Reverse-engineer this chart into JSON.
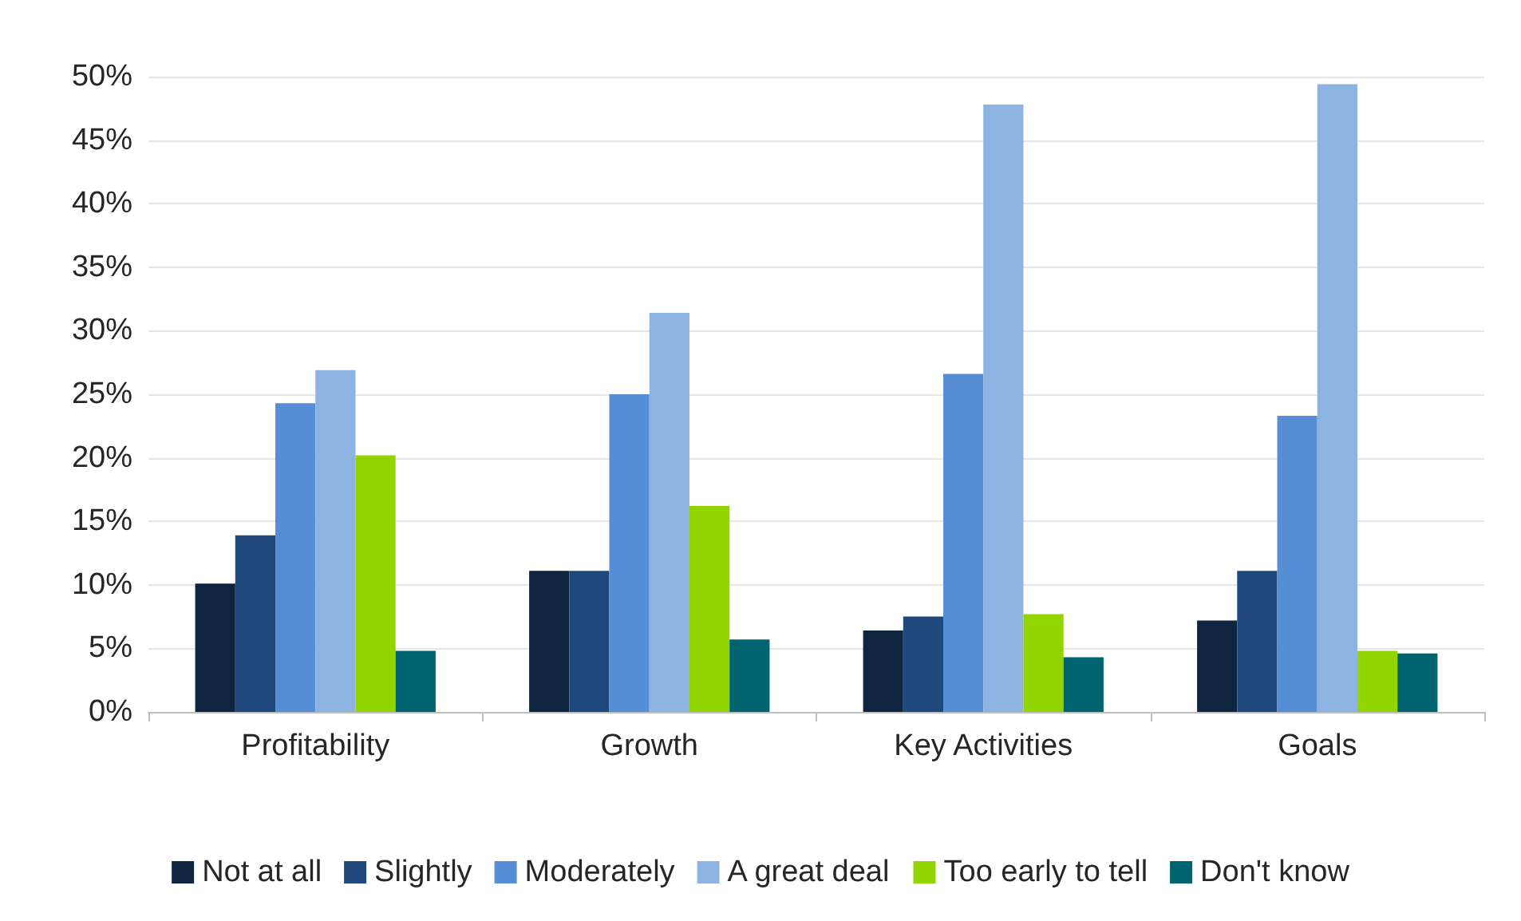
{
  "chart_data": {
    "type": "bar",
    "categories": [
      "Profitability",
      "Growth",
      "Key Activities",
      "Goals"
    ],
    "series": [
      {
        "name": "Not at all",
        "color": "#0f243e",
        "values": [
          10.1,
          11.1,
          6.4,
          7.2
        ]
      },
      {
        "name": "Slightly",
        "color": "#1f497d",
        "values": [
          13.9,
          11.1,
          7.5,
          11.1
        ]
      },
      {
        "name": "Moderately",
        "color": "#558ed5",
        "values": [
          24.3,
          25.0,
          26.6,
          23.3
        ]
      },
      {
        "name": "A great deal",
        "color": "#8db3e2",
        "values": [
          26.9,
          31.4,
          47.8,
          49.4
        ]
      },
      {
        "name": "Too early to tell",
        "color": "#92d400",
        "values": [
          20.2,
          16.2,
          7.7,
          4.8
        ]
      },
      {
        "name": "Don't know",
        "color": "#006470",
        "values": [
          4.8,
          5.7,
          4.3,
          4.6
        ]
      }
    ],
    "ylim": [
      0,
      50
    ],
    "yticks": [
      {
        "value": 0,
        "label": "0%"
      },
      {
        "value": 5,
        "label": "5%"
      },
      {
        "value": 10,
        "label": "10%"
      },
      {
        "value": 15,
        "label": "15%"
      },
      {
        "value": 20,
        "label": "20%"
      },
      {
        "value": 25,
        "label": "25%"
      },
      {
        "value": 30,
        "label": "30%"
      },
      {
        "value": 35,
        "label": "35%"
      },
      {
        "value": 40,
        "label": "40%"
      },
      {
        "value": 45,
        "label": "45%"
      },
      {
        "value": 50,
        "label": "50%"
      }
    ],
    "grid": "y",
    "legend": "bottom"
  }
}
